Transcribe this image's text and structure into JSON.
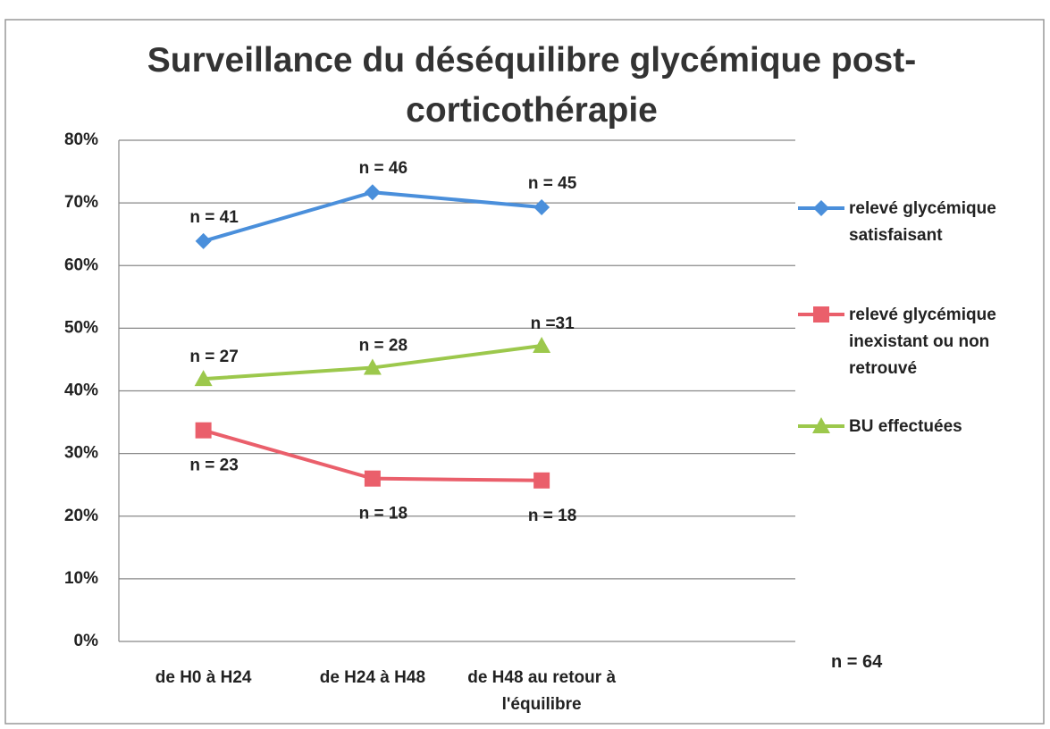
{
  "chart_data": {
    "type": "line",
    "title": "Surveillance du déséquilibre glycémique post-corticothérapie",
    "categories": [
      "de H0 à H24",
      "de H24 à H48",
      "de H48 au retour à l'équilibre"
    ],
    "series": [
      {
        "name": "relevé glycémique satisfaisant",
        "color": "#4a8fdb",
        "marker": "diamond",
        "values": [
          63.9,
          71.7,
          69.3
        ],
        "labels": [
          "n = 41",
          "n = 46",
          "n = 45"
        ]
      },
      {
        "name": "relevé glycémique inexistant ou non retrouvé",
        "color": "#ea5f6b",
        "marker": "square",
        "values": [
          33.7,
          26.0,
          25.7
        ],
        "labels": [
          "n = 23",
          "n = 18",
          "n = 18"
        ]
      },
      {
        "name": "BU effectuées",
        "color": "#9cc84c",
        "marker": "triangle",
        "values": [
          41.9,
          43.7,
          47.2
        ],
        "labels": [
          "n = 27",
          "n = 28",
          "n =31"
        ]
      }
    ],
    "ylim": [
      0,
      80
    ],
    "yticks": [
      {
        "value": 0,
        "label": "0%"
      },
      {
        "value": 10,
        "label": "10%"
      },
      {
        "value": 20,
        "label": "20%"
      },
      {
        "value": 30,
        "label": "30%"
      },
      {
        "value": 40,
        "label": "40%"
      },
      {
        "value": 50,
        "label": "50%"
      },
      {
        "value": 60,
        "label": "60%"
      },
      {
        "value": 70,
        "label": "70%"
      },
      {
        "value": 80,
        "label": "80%"
      }
    ],
    "grid": true,
    "legend": "right",
    "note": "n = 64"
  }
}
